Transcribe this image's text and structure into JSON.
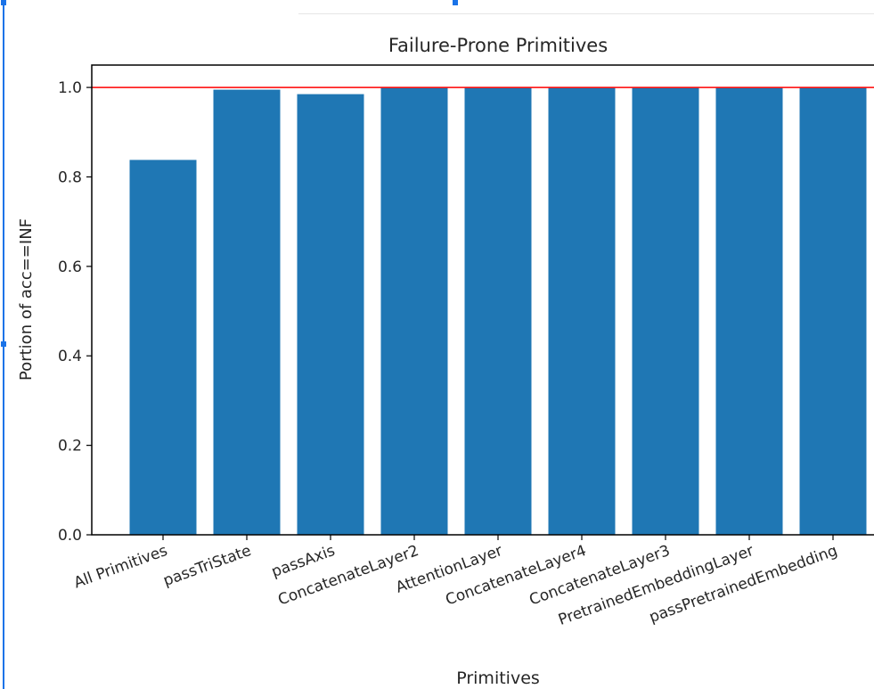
{
  "chart_data": {
    "type": "bar",
    "title": "Failure-Prone Primitives",
    "xlabel": "Primitives",
    "ylabel": "Portion of acc==INF",
    "categories": [
      "All Primitives",
      "passTriState",
      "passAxis",
      "ConcatenateLayer2",
      "AttentionLayer",
      "ConcatenateLayer4",
      "ConcatenateLayer3",
      "PretrainedEmbeddingLayer",
      "passPretrainedEmbedding"
    ],
    "values": [
      0.838,
      0.995,
      0.985,
      1.0,
      1.0,
      1.0,
      1.0,
      1.0,
      1.0
    ],
    "ylim": [
      0,
      1.05
    ],
    "yticks": [
      "0.0",
      "0.2",
      "0.4",
      "0.6",
      "0.8",
      "1.0"
    ],
    "reference_line": 1.0,
    "grid": false,
    "colors": {
      "bar": "#1f77b4",
      "reference_line": "#ff0000",
      "selection": "#1a73e8"
    }
  }
}
